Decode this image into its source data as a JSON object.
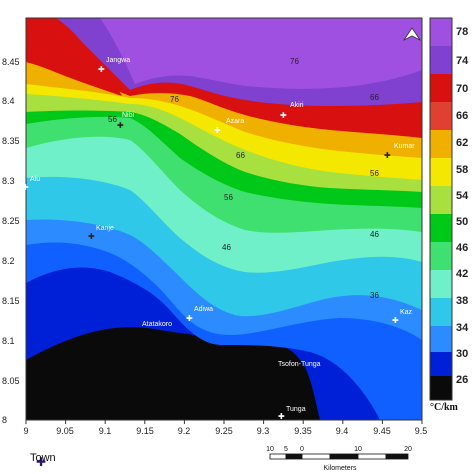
{
  "map": {
    "legend_label": "Town",
    "colorbar_unit": "°C/km",
    "colorbar_labels": [
      "78",
      "74",
      "70",
      "66",
      "62",
      "58",
      "54",
      "50",
      "46",
      "42",
      "38",
      "34",
      "30",
      "26"
    ],
    "colorbar_colors": [
      "#b050e0",
      "#7830c8",
      "#d01010",
      "#e04030",
      "#e8a000",
      "#f0e000",
      "#a0e040",
      "#00c000",
      "#60e080",
      "#80f0c0",
      "#40c8e8",
      "#2090ff",
      "#1030e0",
      "#0010a0",
      "#0a0a0a"
    ],
    "scale_bar": {
      "labels": [
        "10",
        "5",
        "0",
        "10",
        "20"
      ],
      "unit": "Kilometers"
    },
    "north_symbol": "N"
  },
  "chart_data": {
    "type": "contour",
    "xlabel": "",
    "ylabel": "",
    "xlim": [
      9.0,
      9.5
    ],
    "ylim": [
      8.0,
      8.5
    ],
    "x_ticks": [
      "9",
      "9.05",
      "9.1",
      "9.15",
      "9.2",
      "9.25",
      "9.3",
      "9.35",
      "9.4",
      "9.45",
      "9.5"
    ],
    "y_ticks": [
      "8",
      "8.05",
      "8.1",
      "8.15",
      "8.2",
      "8.25",
      "8.3",
      "8.35",
      "8.4",
      "8.45"
    ],
    "towns": [
      {
        "name": "Jangwa",
        "lon": 9.085,
        "lat": 8.44
      },
      {
        "name": "Azara",
        "lon": 9.245,
        "lat": 8.363
      },
      {
        "name": "Akiri",
        "lon": 9.31,
        "lat": 8.38
      },
      {
        "name": "Kumar",
        "lon": 9.46,
        "lat": 8.333
      },
      {
        "name": "Alu",
        "lon": 9.0,
        "lat": 8.29
      },
      {
        "name": "Kanje",
        "lon": 9.082,
        "lat": 8.232
      },
      {
        "name": "Adiwa",
        "lon": 9.21,
        "lat": 8.128
      },
      {
        "name": "Atatakoro",
        "lon": 9.138,
        "lat": 8.105
      },
      {
        "name": "Kaz",
        "lon": 9.47,
        "lat": 8.124
      },
      {
        "name": "Tsofon-Tunga",
        "lon": 9.32,
        "lat": 8.065
      },
      {
        "name": "Tunga",
        "lon": 9.33,
        "lat": 8.0
      }
    ],
    "contour_labels": [
      "56",
      "56",
      "46",
      "46",
      "56",
      "36"
    ]
  }
}
